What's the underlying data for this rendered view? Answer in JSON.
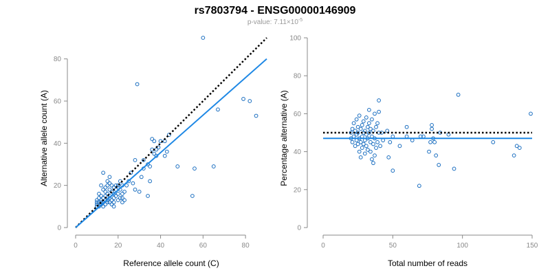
{
  "header": {
    "title": "rs7803794 - ENSG00000146909",
    "subtitle_prefix": "p-value: 7.11×10",
    "subtitle_exp": "-5"
  },
  "colors": {
    "point": "#1a6ec0",
    "fit": "#1e88e5",
    "expected": "#000000",
    "axis": "#888888"
  },
  "chart_data": [
    {
      "type": "scatter",
      "title": "",
      "xlabel": "Reference allele count (C)",
      "ylabel": "Alternative allele count (A)",
      "xlim": [
        0,
        90
      ],
      "ylim": [
        0,
        90
      ],
      "xticks": [
        0,
        20,
        40,
        60,
        80
      ],
      "yticks": [
        0,
        20,
        40,
        60,
        80
      ],
      "expected_line": {
        "style": "dotted",
        "from": [
          0,
          0
        ],
        "to": [
          90,
          90
        ]
      },
      "fit_line": {
        "style": "solid",
        "from": [
          0,
          0
        ],
        "to": [
          90,
          80
        ]
      },
      "points": [
        [
          10,
          10
        ],
        [
          10,
          11
        ],
        [
          10,
          12
        ],
        [
          10,
          13
        ],
        [
          11,
          10
        ],
        [
          11,
          12
        ],
        [
          11,
          14
        ],
        [
          11,
          16
        ],
        [
          12,
          11
        ],
        [
          12,
          12
        ],
        [
          12,
          13
        ],
        [
          12,
          15
        ],
        [
          12,
          20
        ],
        [
          13,
          10
        ],
        [
          13,
          12
        ],
        [
          13,
          14
        ],
        [
          13,
          18
        ],
        [
          13,
          26
        ],
        [
          14,
          11
        ],
        [
          14,
          13
        ],
        [
          14,
          15
        ],
        [
          14,
          17
        ],
        [
          14,
          19
        ],
        [
          15,
          12
        ],
        [
          15,
          13
        ],
        [
          15,
          16
        ],
        [
          15,
          20
        ],
        [
          15,
          22
        ],
        [
          16,
          12
        ],
        [
          16,
          14
        ],
        [
          16,
          15
        ],
        [
          16,
          18
        ],
        [
          16,
          21
        ],
        [
          16,
          24
        ],
        [
          17,
          11
        ],
        [
          17,
          13
        ],
        [
          17,
          17
        ],
        [
          17,
          20
        ],
        [
          18,
          10
        ],
        [
          18,
          12
        ],
        [
          18,
          14
        ],
        [
          18,
          16
        ],
        [
          18,
          19
        ],
        [
          19,
          15
        ],
        [
          19,
          18
        ],
        [
          19,
          20
        ],
        [
          20,
          13
        ],
        [
          20,
          16
        ],
        [
          20,
          19
        ],
        [
          20,
          20
        ],
        [
          21,
          14
        ],
        [
          21,
          18
        ],
        [
          21,
          22
        ],
        [
          22,
          12
        ],
        [
          22,
          14
        ],
        [
          22,
          16
        ],
        [
          22,
          20
        ],
        [
          23,
          13
        ],
        [
          23,
          17
        ],
        [
          24,
          20
        ],
        [
          25,
          22
        ],
        [
          26,
          26
        ],
        [
          27,
          21
        ],
        [
          28,
          18
        ],
        [
          28,
          32
        ],
        [
          29,
          68
        ],
        [
          30,
          17
        ],
        [
          31,
          24
        ],
        [
          32,
          28
        ],
        [
          32,
          32
        ],
        [
          34,
          15
        ],
        [
          34,
          30
        ],
        [
          35,
          22
        ],
        [
          35,
          29
        ],
        [
          36,
          37
        ],
        [
          36,
          42
        ],
        [
          37,
          35
        ],
        [
          37,
          41
        ],
        [
          38,
          34
        ],
        [
          38,
          37
        ],
        [
          39,
          38
        ],
        [
          40,
          41
        ],
        [
          42,
          41
        ],
        [
          42,
          34
        ],
        [
          43,
          36
        ],
        [
          44,
          44
        ],
        [
          48,
          29
        ],
        [
          55,
          15
        ],
        [
          56,
          28
        ],
        [
          60,
          90
        ],
        [
          65,
          29
        ],
        [
          67,
          56
        ],
        [
          79,
          61
        ],
        [
          82,
          60
        ],
        [
          85,
          53
        ]
      ]
    },
    {
      "type": "scatter",
      "title": "",
      "xlabel": "Total number of reads",
      "ylabel": "Percentage alternative (A)",
      "xlim": [
        0,
        150
      ],
      "ylim": [
        0,
        100
      ],
      "xticks": [
        0,
        50,
        100,
        150
      ],
      "yticks": [
        0,
        20,
        40,
        60,
        80,
        100
      ],
      "expected_line": {
        "style": "dotted",
        "y": 50
      },
      "fit_line": {
        "style": "solid",
        "y": 47
      },
      "points": [
        [
          20,
          50
        ],
        [
          20,
          47
        ],
        [
          21,
          52
        ],
        [
          21,
          45
        ],
        [
          22,
          55
        ],
        [
          22,
          48
        ],
        [
          23,
          51
        ],
        [
          23,
          43
        ],
        [
          24,
          57
        ],
        [
          24,
          46
        ],
        [
          24,
          49
        ],
        [
          25,
          53
        ],
        [
          25,
          44
        ],
        [
          25,
          50
        ],
        [
          26,
          59
        ],
        [
          26,
          47
        ],
        [
          26,
          40
        ],
        [
          27,
          52
        ],
        [
          27,
          45
        ],
        [
          27,
          37
        ],
        [
          28,
          54
        ],
        [
          28,
          48
        ],
        [
          28,
          42
        ],
        [
          29,
          50
        ],
        [
          29,
          56
        ],
        [
          29,
          44
        ],
        [
          30,
          46
        ],
        [
          30,
          51
        ],
        [
          30,
          39
        ],
        [
          31,
          58
        ],
        [
          31,
          49
        ],
        [
          31,
          43
        ],
        [
          32,
          53
        ],
        [
          32,
          47
        ],
        [
          32,
          41
        ],
        [
          33,
          55
        ],
        [
          33,
          50
        ],
        [
          33,
          62
        ],
        [
          34,
          45
        ],
        [
          34,
          40
        ],
        [
          34,
          52
        ],
        [
          35,
          48
        ],
        [
          35,
          36
        ],
        [
          35,
          57
        ],
        [
          36,
          44
        ],
        [
          36,
          51
        ],
        [
          36,
          34
        ],
        [
          37,
          60
        ],
        [
          37,
          47
        ],
        [
          37,
          38
        ],
        [
          38,
          53
        ],
        [
          38,
          42
        ],
        [
          39,
          55
        ],
        [
          39,
          45
        ],
        [
          40,
          67
        ],
        [
          40,
          50
        ],
        [
          40,
          61
        ],
        [
          41,
          43
        ],
        [
          42,
          50
        ],
        [
          43,
          46
        ],
        [
          46,
          51
        ],
        [
          47,
          37
        ],
        [
          48,
          45
        ],
        [
          50,
          30
        ],
        [
          50,
          48
        ],
        [
          55,
          43
        ],
        [
          60,
          48
        ],
        [
          60,
          53
        ],
        [
          64,
          46
        ],
        [
          69,
          22
        ],
        [
          70,
          48
        ],
        [
          72,
          48
        ],
        [
          76,
          40
        ],
        [
          77,
          45
        ],
        [
          78,
          52
        ],
        [
          78,
          54
        ],
        [
          79,
          47
        ],
        [
          80,
          45
        ],
        [
          81,
          38
        ],
        [
          83,
          33
        ],
        [
          84,
          50
        ],
        [
          90,
          49
        ],
        [
          94,
          31
        ],
        [
          97,
          70
        ],
        [
          122,
          45
        ],
        [
          137,
          38
        ],
        [
          139,
          43
        ],
        [
          141,
          42
        ],
        [
          149,
          60
        ]
      ]
    }
  ]
}
